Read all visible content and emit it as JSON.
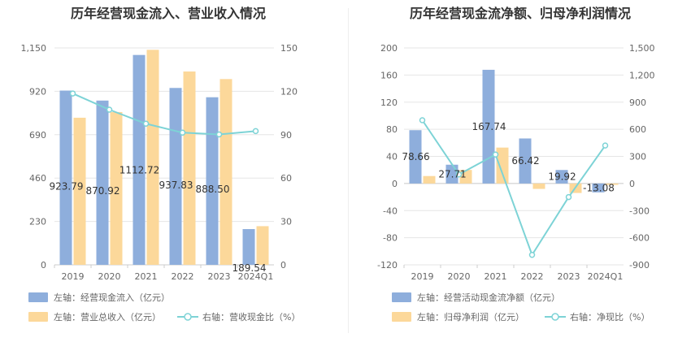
{
  "colors": {
    "bar_blue": "#8eaedc",
    "bar_yellow": "#fcd89a",
    "line_cyan": "#7dd3d6",
    "grid": "#e6e6e6",
    "axis_text": "#666666"
  },
  "chart_data": [
    {
      "type": "bar",
      "title": "历年经营现金流入、营业收入情况",
      "categories": [
        "2019",
        "2020",
        "2021",
        "2022",
        "2023",
        "2024Q1"
      ],
      "left_axis": {
        "ylim": [
          0,
          1150
        ],
        "ticks": [
          "0",
          "230",
          "460",
          "690",
          "920",
          "1,150"
        ]
      },
      "right_axis": {
        "ylim": [
          0,
          150
        ],
        "ticks": [
          "0",
          "30",
          "60",
          "90",
          "120",
          "150"
        ]
      },
      "series": [
        {
          "name": "左轴：经营现金流入（亿元）",
          "type": "bar",
          "axis": "left",
          "values": [
            923.79,
            870.92,
            1112.72,
            937.83,
            888.5,
            189.54
          ],
          "labels": [
            "923.79",
            "870.92",
            "1112.72",
            "937.83",
            "888.50",
            "189.54"
          ]
        },
        {
          "name": "左轴：营业总收入（亿元）",
          "type": "bar",
          "axis": "left",
          "values": [
            780,
            810,
            1140,
            1025,
            985,
            205
          ]
        },
        {
          "name": "右轴：营收现金比（%）",
          "type": "line",
          "axis": "right",
          "values": [
            118.5,
            107.3,
            97.6,
            91.4,
            90.2,
            92.5
          ]
        }
      ]
    },
    {
      "type": "bar",
      "title": "历年经营现金流净额、归母净利润情况",
      "categories": [
        "2019",
        "2020",
        "2021",
        "2022",
        "2023",
        "2024Q1"
      ],
      "left_axis": {
        "ylim": [
          -120,
          200
        ],
        "ticks": [
          "-120",
          "-80",
          "-40",
          "0",
          "40",
          "80",
          "120",
          "160",
          "200"
        ]
      },
      "right_axis": {
        "ylim": [
          -900,
          1500
        ],
        "ticks": [
          "-900",
          "-600",
          "-300",
          "0",
          "300",
          "600",
          "900",
          "1,200",
          "1,500"
        ]
      },
      "series": [
        {
          "name": "左轴：经营活动现金流净额（亿元）",
          "type": "bar",
          "axis": "left",
          "values": [
            78.66,
            27.71,
            167.74,
            66.42,
            19.92,
            -13.08
          ],
          "labels": [
            "78.66",
            "27.71",
            "167.74",
            "66.42",
            "19.92",
            "-13.08"
          ]
        },
        {
          "name": "左轴：归母净利润（亿元）",
          "type": "bar",
          "axis": "left",
          "values": [
            11,
            20,
            53,
            -8,
            -14,
            -2
          ]
        },
        {
          "name": "右轴：净现比（%）",
          "type": "line",
          "axis": "right",
          "values": [
            700,
            100,
            320,
            -790,
            -150,
            420
          ]
        }
      ]
    }
  ]
}
